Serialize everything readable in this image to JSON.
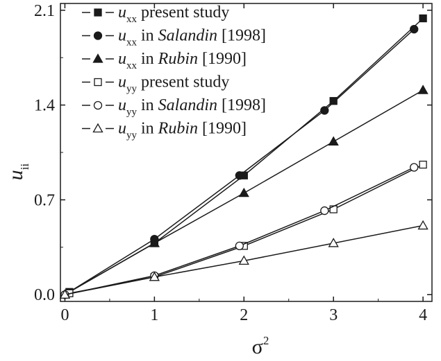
{
  "chart_data": {
    "type": "line",
    "xlabel": {
      "base": "σ",
      "sup": "2"
    },
    "ylabel": {
      "base": "u",
      "sub": "ii"
    },
    "xlim": [
      -0.05,
      4.1
    ],
    "ylim": [
      -0.05,
      2.15
    ],
    "x_ticks": [
      0,
      1,
      2,
      3,
      4
    ],
    "x_tick_labels": [
      "0",
      "1",
      "2",
      "3",
      "4"
    ],
    "y_ticks": [
      0.0,
      0.7,
      1.4,
      2.1
    ],
    "y_tick_labels": [
      "0.0",
      "0.7",
      "1.4",
      "2.1"
    ],
    "grid": false,
    "legend_position": "top-left",
    "series": [
      {
        "name": "u_xx present study",
        "legend": {
          "sym": "u",
          "sub": "xx",
          "parts": [
            {
              "t": " present study",
              "i": false
            }
          ]
        },
        "marker": "square",
        "filled": true,
        "x": [
          0.05,
          1,
          2,
          3,
          4
        ],
        "y": [
          0.02,
          0.38,
          0.88,
          1.43,
          2.04
        ]
      },
      {
        "name": "u_xx in Salandin [1998]",
        "legend": {
          "sym": "u",
          "sub": "xx",
          "parts": [
            {
              "t": " in ",
              "i": false
            },
            {
              "t": "Salandin",
              "i": true
            },
            {
              "t": " [1998]",
              "i": false
            }
          ]
        },
        "marker": "circle",
        "filled": true,
        "x": [
          0,
          1,
          1.95,
          2.9,
          3.9
        ],
        "y": [
          0.0,
          0.41,
          0.88,
          1.36,
          1.96
        ]
      },
      {
        "name": "u_xx in Rubin [1990]",
        "legend": {
          "sym": "u",
          "sub": "xx",
          "parts": [
            {
              "t": " in ",
              "i": false
            },
            {
              "t": "Rubin",
              "i": true
            },
            {
              "t": " [1990]",
              "i": false
            }
          ]
        },
        "marker": "triangle",
        "filled": true,
        "x": [
          0,
          1,
          2,
          3,
          4
        ],
        "y": [
          0.0,
          0.38,
          0.75,
          1.13,
          1.51
        ]
      },
      {
        "name": "u_yy present study",
        "legend": {
          "sym": "u",
          "sub": "yy",
          "parts": [
            {
              "t": " present study",
              "i": false
            }
          ]
        },
        "marker": "square",
        "filled": false,
        "x": [
          0.05,
          1,
          2,
          3,
          4
        ],
        "y": [
          0.01,
          0.13,
          0.36,
          0.63,
          0.96
        ]
      },
      {
        "name": "u_yy in Salandin [1998]",
        "legend": {
          "sym": "u",
          "sub": "yy",
          "parts": [
            {
              "t": " in ",
              "i": false
            },
            {
              "t": "Salandin",
              "i": true
            },
            {
              "t": " [1998]",
              "i": false
            }
          ]
        },
        "marker": "circle",
        "filled": false,
        "x": [
          0,
          1,
          1.95,
          2.9,
          3.9
        ],
        "y": [
          0.0,
          0.14,
          0.36,
          0.62,
          0.94
        ]
      },
      {
        "name": "u_yy in Rubin [1990]",
        "legend": {
          "sym": "u",
          "sub": "yy",
          "parts": [
            {
              "t": " in ",
              "i": false
            },
            {
              "t": "Rubin",
              "i": true
            },
            {
              "t": " [1990]",
              "i": false
            }
          ]
        },
        "marker": "triangle",
        "filled": false,
        "x": [
          0,
          1,
          2,
          3,
          4
        ],
        "y": [
          0.0,
          0.13,
          0.25,
          0.38,
          0.51
        ]
      }
    ]
  },
  "colors": {
    "ink": "#1a1a1a",
    "background": "#ffffff"
  }
}
